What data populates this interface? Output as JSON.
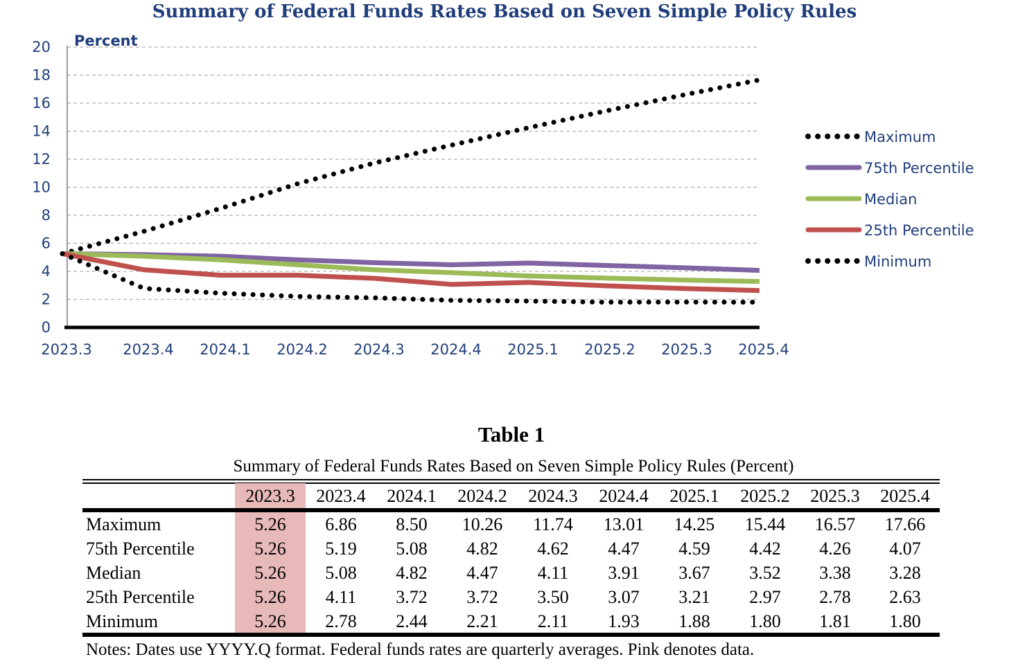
{
  "chart_data": {
    "type": "line",
    "title": "Summary of Federal Funds Rates Based on Seven Simple Policy Rules",
    "ylabel": "Percent",
    "xlabel": "",
    "categories": [
      "2023.3",
      "2023.4",
      "2024.1",
      "2024.2",
      "2024.3",
      "2024.4",
      "2025.1",
      "2025.2",
      "2025.3",
      "2025.4"
    ],
    "ylim": [
      0,
      20
    ],
    "yticks": [
      "0",
      "2",
      "4",
      "6",
      "8",
      "10",
      "12",
      "14",
      "16",
      "18",
      "20"
    ],
    "grid": true,
    "legend_position": "right",
    "series": [
      {
        "name": "Maximum",
        "style": "dotted",
        "color": "#000000",
        "values": [
          5.26,
          6.86,
          8.5,
          10.26,
          11.74,
          13.01,
          14.25,
          15.44,
          16.57,
          17.66
        ]
      },
      {
        "name": "75th Percentile",
        "style": "solid",
        "color": "#8064a2",
        "values": [
          5.26,
          5.19,
          5.08,
          4.82,
          4.62,
          4.47,
          4.59,
          4.42,
          4.26,
          4.07
        ]
      },
      {
        "name": "Median",
        "style": "solid",
        "color": "#9bbb59",
        "values": [
          5.26,
          5.08,
          4.82,
          4.47,
          4.11,
          3.91,
          3.67,
          3.52,
          3.38,
          3.28
        ]
      },
      {
        "name": "25th Percentile",
        "style": "solid",
        "color": "#c0504d",
        "values": [
          5.26,
          4.11,
          3.72,
          3.72,
          3.5,
          3.07,
          3.21,
          2.97,
          2.78,
          2.63
        ]
      },
      {
        "name": "Minimum",
        "style": "dotted",
        "color": "#000000",
        "values": [
          5.26,
          2.78,
          2.44,
          2.21,
          2.11,
          1.93,
          1.88,
          1.8,
          1.81,
          1.8
        ]
      }
    ]
  },
  "table": {
    "title": "Table 1",
    "subtitle": "Summary of Federal Funds Rates Based on Seven Simple Policy Rules (Percent)",
    "columns": [
      "2023.3",
      "2023.4",
      "2024.1",
      "2024.2",
      "2024.3",
      "2024.4",
      "2025.1",
      "2025.2",
      "2025.3",
      "2025.4"
    ],
    "rows": [
      {
        "label": "Maximum",
        "values": [
          "5.26",
          "6.86",
          "8.50",
          "10.26",
          "11.74",
          "13.01",
          "14.25",
          "15.44",
          "16.57",
          "17.66"
        ]
      },
      {
        "label": "75th Percentile",
        "values": [
          "5.26",
          "5.19",
          "5.08",
          "4.82",
          "4.62",
          "4.47",
          "4.59",
          "4.42",
          "4.26",
          "4.07"
        ]
      },
      {
        "label": "Median",
        "values": [
          "5.26",
          "5.08",
          "4.82",
          "4.47",
          "4.11",
          "3.91",
          "3.67",
          "3.52",
          "3.38",
          "3.28"
        ]
      },
      {
        "label": "25th Percentile",
        "values": [
          "5.26",
          "4.11",
          "3.72",
          "3.72",
          "3.50",
          "3.07",
          "3.21",
          "2.97",
          "2.78",
          "2.63"
        ]
      },
      {
        "label": "Minimum",
        "values": [
          "5.26",
          "2.78",
          "2.44",
          "2.21",
          "2.11",
          "1.93",
          "1.88",
          "1.80",
          "1.81",
          "1.80"
        ]
      }
    ],
    "data_highlight_color": "#e8b9b9",
    "notes": "Notes: Dates use YYYY.Q format.  Federal funds rates are quarterly averages.  Pink denotes data."
  }
}
